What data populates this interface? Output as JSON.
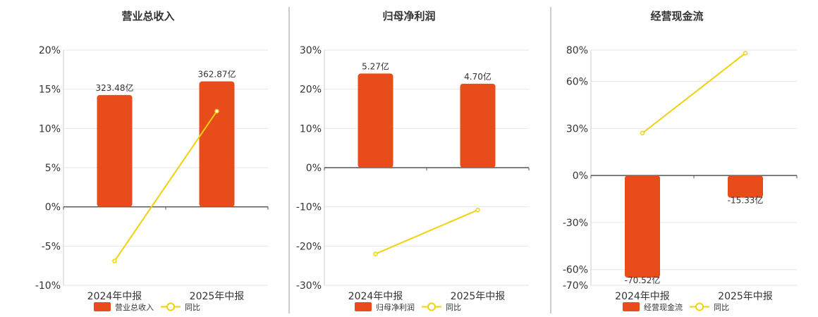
{
  "chart_data": [
    {
      "type": "bar",
      "title": "营业总收入",
      "categories": [
        "2024年中报",
        "2025年中报"
      ],
      "bar_series": {
        "name": "营业总收入",
        "values": [
          323.48,
          362.87
        ],
        "unit": "亿",
        "labels": [
          "323.48亿",
          "362.87亿"
        ]
      },
      "line_series": {
        "name": "同比",
        "values": [
          -6.9,
          12.2
        ],
        "unit": "%"
      },
      "ylim": [
        -10,
        20
      ],
      "yticks": [
        -10,
        -5,
        0,
        5,
        10,
        15,
        20
      ],
      "ytick_labels": [
        "-10%",
        "-5%",
        "0%",
        "5%",
        "10%",
        "15%",
        "20%"
      ],
      "grid": true,
      "legend": "bottom"
    },
    {
      "type": "bar",
      "title": "归母净利润",
      "categories": [
        "2024年中报",
        "2025年中报"
      ],
      "bar_series": {
        "name": "归母净利润",
        "values": [
          5.27,
          4.7
        ],
        "unit": "亿",
        "labels": [
          "5.27亿",
          "4.70亿"
        ]
      },
      "line_series": {
        "name": "同比",
        "values": [
          -22,
          -10.8
        ],
        "unit": "%"
      },
      "ylim": [
        -30,
        30
      ],
      "yticks": [
        -30,
        -20,
        -10,
        0,
        10,
        20,
        30
      ],
      "ytick_labels": [
        "-30%",
        "-20%",
        "-10%",
        "0%",
        "10%",
        "20%",
        "30%"
      ],
      "grid": true,
      "legend": "bottom"
    },
    {
      "type": "bar",
      "title": "经营现金流",
      "categories": [
        "2024年中报",
        "2025年中报"
      ],
      "bar_series": {
        "name": "经营现金流",
        "values": [
          -70.52,
          -15.33
        ],
        "unit": "亿",
        "labels": [
          "-70.52亿",
          "-15.33亿"
        ]
      },
      "line_series": {
        "name": "同比",
        "values": [
          27,
          78
        ],
        "unit": "%"
      },
      "ylim": [
        -70,
        80
      ],
      "yticks": [
        -70,
        -60,
        -30,
        0,
        30,
        60,
        80
      ],
      "ytick_labels": [
        "-70%",
        "-60%",
        "-30%",
        "0%",
        "30%",
        "60%",
        "80%"
      ],
      "grid": true,
      "legend": "bottom"
    }
  ],
  "colors": {
    "bar": "#E84C1B",
    "line": "#F2D10C",
    "marker_fill": "#ffffff",
    "grid": "#e6e6e6",
    "axis": "#555555",
    "divider": "#999999",
    "text": "#333333"
  }
}
